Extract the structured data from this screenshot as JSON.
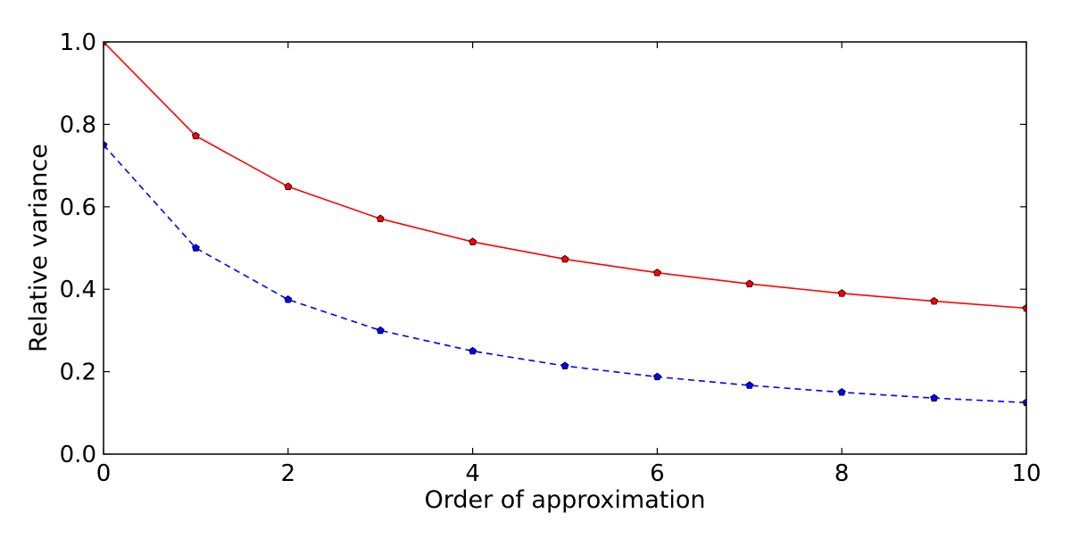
{
  "chart_data": {
    "type": "line",
    "title": "",
    "xlabel": "Order of approximation",
    "ylabel": "Relative variance",
    "xlim": [
      0,
      10
    ],
    "ylim": [
      0.0,
      1.0
    ],
    "xticks": [
      0,
      2,
      4,
      6,
      8,
      10
    ],
    "xtick_labels": [
      "0",
      "2",
      "4",
      "6",
      "8",
      "10"
    ],
    "yticks": [
      0.0,
      0.2,
      0.4,
      0.6,
      0.8,
      1.0
    ],
    "ytick_labels": [
      "0.0",
      "0.2",
      "0.4",
      "0.6",
      "0.8",
      "1.0"
    ],
    "grid": false,
    "legend": "none",
    "x": [
      0,
      1,
      2,
      3,
      4,
      5,
      6,
      7,
      8,
      9,
      10
    ],
    "series": [
      {
        "values": [
          1.0,
          0.772,
          0.649,
          0.571,
          0.515,
          0.473,
          0.44,
          0.413,
          0.39,
          0.371,
          0.354
        ],
        "color": "#ff0000",
        "line_style": "solid",
        "marker": "pentagon"
      },
      {
        "values": [
          0.75,
          0.5,
          0.375,
          0.3,
          0.25,
          0.214,
          0.1875,
          0.1667,
          0.15,
          0.136,
          0.125
        ],
        "color": "#0000ff",
        "line_style": "dashed",
        "marker": "pentagon"
      }
    ]
  }
}
